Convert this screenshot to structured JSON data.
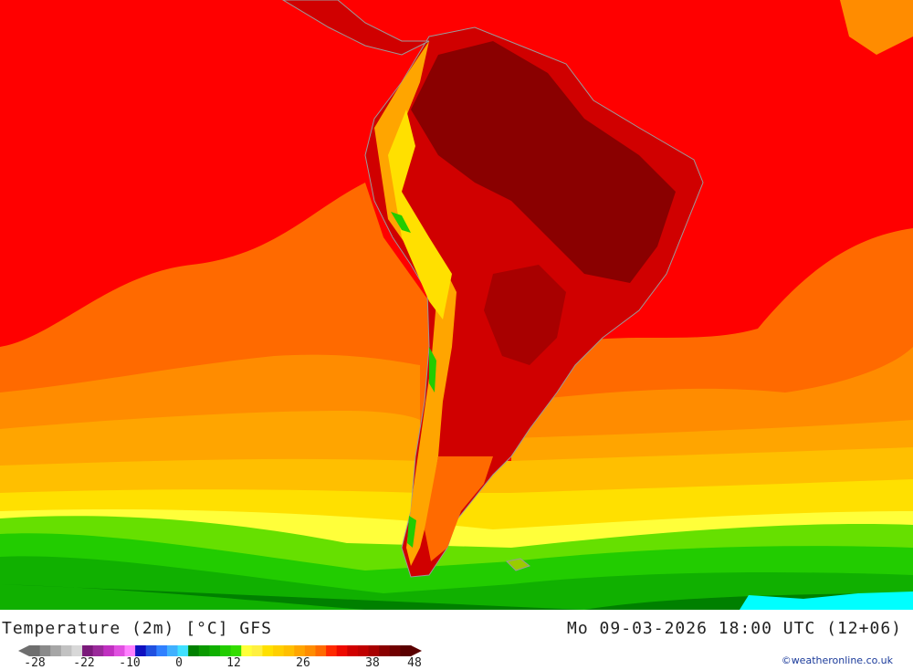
{
  "map": {
    "region": "South America",
    "colors": {
      "t48": "#5a0000",
      "t40": "#8a0000",
      "t34": "#c00000",
      "t30": "#ee0a00",
      "t26": "#ff2a00",
      "t22": "#ff6a00",
      "t20": "#ff8c00",
      "t18": "#ffa500",
      "t16": "#ffbf00",
      "t14": "#ffe000",
      "t12": "#ffff3a",
      "t10": "#c6f000",
      "t8": "#66e000",
      "t6": "#22cc00",
      "t4": "#10b000",
      "t2": "#0a9a00",
      "t0": "#008000",
      "cold": "#00ffff",
      "sea": "#ff0000",
      "borders": "#9a9a9a"
    }
  },
  "footer": {
    "title_left": "Temperature (2m) [°C] GFS",
    "title_right": "Mo 09-03-2026 18:00 UTC (12+06)",
    "credit": "©weatheronline.co.uk"
  },
  "colorbar": {
    "ticks": [
      "-28",
      "-22",
      "-10",
      "0",
      "12",
      "26",
      "38",
      "48"
    ],
    "colors": [
      "#6e6e6e",
      "#8a8a8a",
      "#a6a6a6",
      "#c2c2c2",
      "#d8d8d8",
      "#7a1a7a",
      "#9a2a9a",
      "#c030c0",
      "#e050e0",
      "#ff80ff",
      "#1010c0",
      "#2050e0",
      "#3080ff",
      "#40b0ff",
      "#40e0ff",
      "#008000",
      "#0a9a00",
      "#10b000",
      "#22cc00",
      "#33dd00",
      "#ffff3a",
      "#fff040",
      "#ffe000",
      "#ffcf00",
      "#ffbf00",
      "#ffa500",
      "#ff8c00",
      "#ff6a00",
      "#ff2a00",
      "#ee0a00",
      "#d00000",
      "#c00000",
      "#a80000",
      "#8a0000",
      "#700000",
      "#5a0000"
    ]
  }
}
